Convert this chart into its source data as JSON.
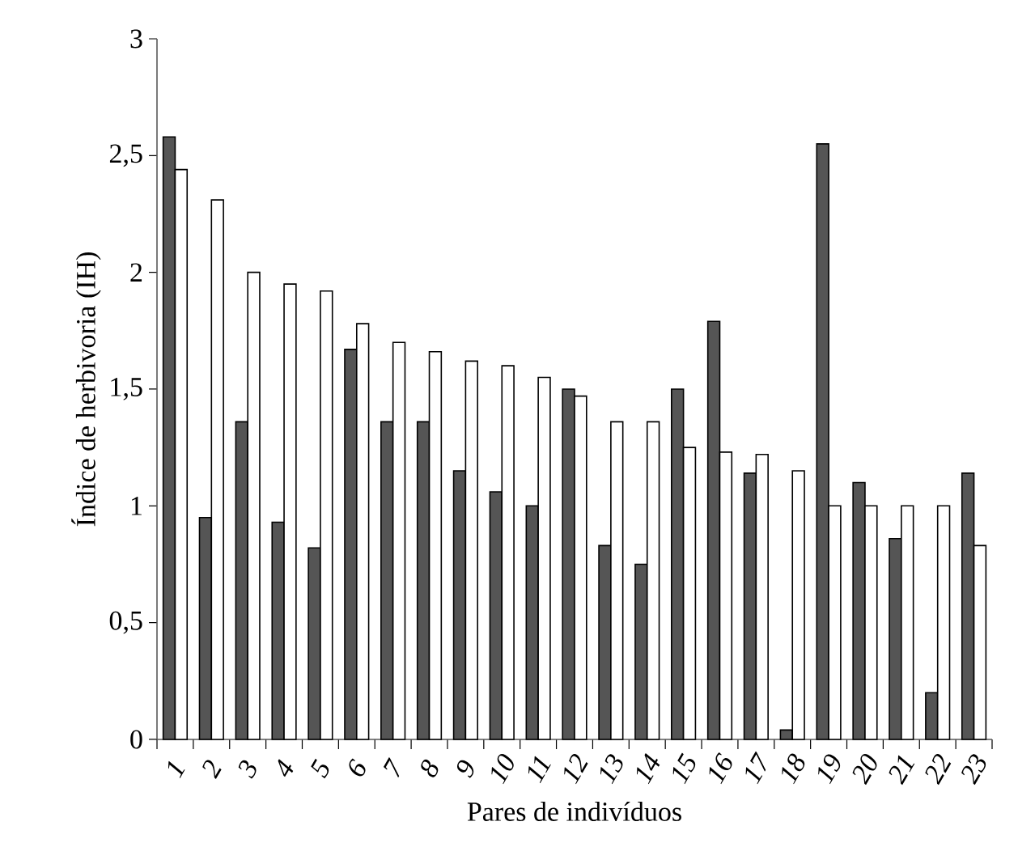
{
  "chart_data": {
    "type": "bar",
    "xlabel": "Pares de indivíduos",
    "ylabel": "Índice de herbivoria (IH)",
    "categories": [
      "1",
      "2",
      "3",
      "4",
      "5",
      "6",
      "7",
      "8",
      "9",
      "10",
      "11",
      "12",
      "13",
      "14",
      "15",
      "16",
      "17",
      "18",
      "19",
      "20",
      "21",
      "22",
      "23"
    ],
    "series": [
      {
        "color": "#555555",
        "values": [
          2.58,
          0.95,
          1.36,
          0.93,
          0.82,
          1.67,
          1.36,
          1.36,
          1.15,
          1.06,
          1.0,
          1.5,
          0.83,
          0.75,
          1.5,
          1.79,
          1.14,
          0.04,
          2.55,
          1.1,
          0.86,
          0.2,
          1.14
        ]
      },
      {
        "color": "#ffffff",
        "values": [
          2.44,
          2.31,
          2.0,
          1.95,
          1.92,
          1.78,
          1.7,
          1.66,
          1.62,
          1.6,
          1.55,
          1.47,
          1.36,
          1.36,
          1.25,
          1.23,
          1.22,
          1.15,
          1.0,
          1.0,
          1.0,
          1.0,
          0.83
        ]
      }
    ],
    "ylim": [
      0,
      3
    ],
    "yticks": [
      0,
      {
        "value": 0.5,
        "label": "0,5"
      },
      1,
      {
        "value": 1.5,
        "label": "1,5"
      },
      2,
      {
        "value": 2.5,
        "label": "2,5"
      },
      3
    ],
    "grid": false
  }
}
